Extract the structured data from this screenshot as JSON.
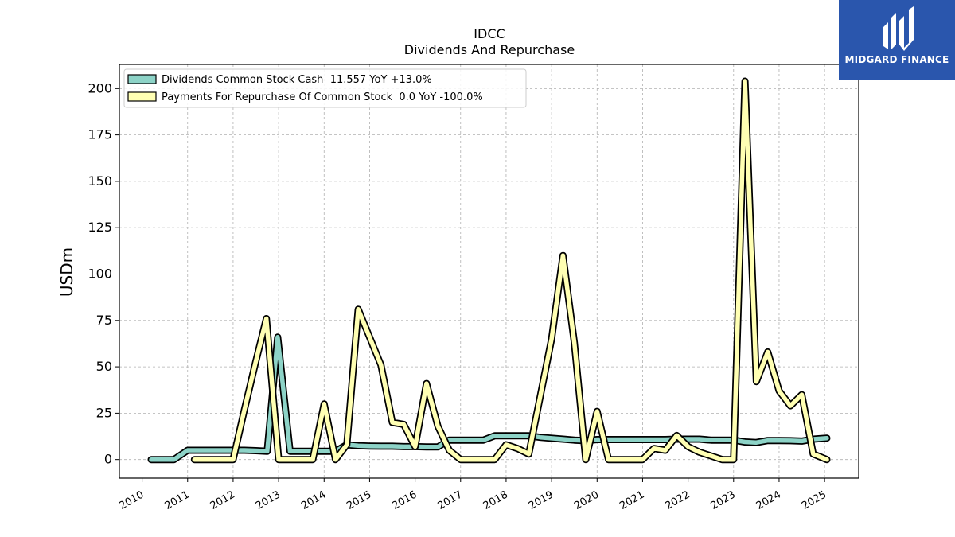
{
  "chart_data": {
    "type": "line",
    "title": "IDCC",
    "subtitle": "Dividends And Repurchase",
    "ylabel": "USDm",
    "xlabel": "",
    "ylim": [
      -10,
      213
    ],
    "xlim": [
      2009.5,
      2025.75
    ],
    "yticks": [
      0,
      25,
      50,
      75,
      100,
      125,
      150,
      175,
      200
    ],
    "xticks": [
      "2010",
      "2011",
      "2012",
      "2013",
      "2014",
      "2015",
      "2016",
      "2017",
      "2018",
      "2019",
      "2020",
      "2021",
      "2022",
      "2023",
      "2024",
      "2025"
    ],
    "grid": true,
    "legend_position": "top-left",
    "series": [
      {
        "name": "Dividends Common Stock Cash  11.557 YoY +13.0%",
        "color": "#8dd3c7",
        "points": [
          [
            2010.2,
            0
          ],
          [
            2010.45,
            0
          ],
          [
            2010.7,
            0
          ],
          [
            2011.0,
            5
          ],
          [
            2011.25,
            5
          ],
          [
            2011.5,
            5
          ],
          [
            2011.75,
            5
          ],
          [
            2012.0,
            5
          ],
          [
            2012.25,
            5
          ],
          [
            2012.5,
            4.8
          ],
          [
            2012.75,
            4.5
          ],
          [
            2012.98,
            66
          ],
          [
            2013.25,
            4.5
          ],
          [
            2013.5,
            4.5
          ],
          [
            2013.75,
            4.5
          ],
          [
            2014.0,
            4.5
          ],
          [
            2014.25,
            4.5
          ],
          [
            2014.5,
            8
          ],
          [
            2014.75,
            7.5
          ],
          [
            2015.0,
            7.3
          ],
          [
            2015.25,
            7.2
          ],
          [
            2015.5,
            7.2
          ],
          [
            2015.75,
            7.0
          ],
          [
            2016.0,
            7.0
          ],
          [
            2016.25,
            6.8
          ],
          [
            2016.5,
            6.8
          ],
          [
            2016.75,
            10.5
          ],
          [
            2017.0,
            10.5
          ],
          [
            2017.25,
            10.5
          ],
          [
            2017.5,
            10.5
          ],
          [
            2017.75,
            12.8
          ],
          [
            2018.0,
            12.8
          ],
          [
            2018.25,
            12.8
          ],
          [
            2018.5,
            12.8
          ],
          [
            2018.75,
            12.0
          ],
          [
            2019.0,
            11.5
          ],
          [
            2019.25,
            11.0
          ],
          [
            2019.5,
            10.5
          ],
          [
            2019.75,
            10.2
          ],
          [
            2020.0,
            10.8
          ],
          [
            2020.25,
            10.8
          ],
          [
            2020.5,
            10.8
          ],
          [
            2020.75,
            10.8
          ],
          [
            2021.0,
            10.8
          ],
          [
            2021.25,
            10.8
          ],
          [
            2021.5,
            10.8
          ],
          [
            2021.75,
            11.0
          ],
          [
            2022.0,
            11.0
          ],
          [
            2022.25,
            11.0
          ],
          [
            2022.5,
            10.5
          ],
          [
            2022.75,
            10.5
          ],
          [
            2023.0,
            10.5
          ],
          [
            2023.25,
            9.5
          ],
          [
            2023.5,
            9.2
          ],
          [
            2023.75,
            10.3
          ],
          [
            2024.0,
            10.3
          ],
          [
            2024.25,
            10.2
          ],
          [
            2024.5,
            10.0
          ],
          [
            2024.75,
            11.0
          ],
          [
            2025.05,
            11.557
          ]
        ]
      },
      {
        "name": "Payments For Repurchase Of Common Stock  0.0 YoY -100.0%",
        "color": "#ffffb3",
        "points": [
          [
            2011.15,
            0
          ],
          [
            2011.5,
            0
          ],
          [
            2011.75,
            0
          ],
          [
            2012.0,
            0
          ],
          [
            2012.25,
            27
          ],
          [
            2012.5,
            53
          ],
          [
            2012.73,
            76
          ],
          [
            2013.0,
            0
          ],
          [
            2013.25,
            0
          ],
          [
            2013.5,
            0
          ],
          [
            2013.75,
            0
          ],
          [
            2014.0,
            30
          ],
          [
            2014.25,
            0
          ],
          [
            2014.5,
            8
          ],
          [
            2014.75,
            81
          ],
          [
            2015.0,
            66
          ],
          [
            2015.25,
            51
          ],
          [
            2015.5,
            20
          ],
          [
            2015.75,
            19
          ],
          [
            2016.0,
            7
          ],
          [
            2016.25,
            41
          ],
          [
            2016.5,
            18
          ],
          [
            2016.75,
            5
          ],
          [
            2017.0,
            0
          ],
          [
            2017.25,
            0
          ],
          [
            2017.5,
            0
          ],
          [
            2017.75,
            0
          ],
          [
            2018.0,
            8
          ],
          [
            2018.25,
            6
          ],
          [
            2018.5,
            3
          ],
          [
            2019.0,
            65
          ],
          [
            2019.25,
            110
          ],
          [
            2019.5,
            63
          ],
          [
            2019.75,
            0
          ],
          [
            2020.0,
            26
          ],
          [
            2020.25,
            0
          ],
          [
            2020.5,
            0
          ],
          [
            2020.75,
            0
          ],
          [
            2021.0,
            0
          ],
          [
            2021.25,
            6
          ],
          [
            2021.5,
            5
          ],
          [
            2021.75,
            13
          ],
          [
            2022.0,
            7
          ],
          [
            2022.25,
            4
          ],
          [
            2022.5,
            2
          ],
          [
            2022.75,
            0
          ],
          [
            2023.0,
            0
          ],
          [
            2023.25,
            204
          ],
          [
            2023.5,
            42
          ],
          [
            2023.75,
            58
          ],
          [
            2024.0,
            37
          ],
          [
            2024.25,
            29
          ],
          [
            2024.5,
            35
          ],
          [
            2024.75,
            3
          ],
          [
            2025.05,
            0
          ]
        ]
      }
    ]
  },
  "logo": {
    "text": "MIDGARD FINANCE",
    "background": "#2a56ad"
  }
}
